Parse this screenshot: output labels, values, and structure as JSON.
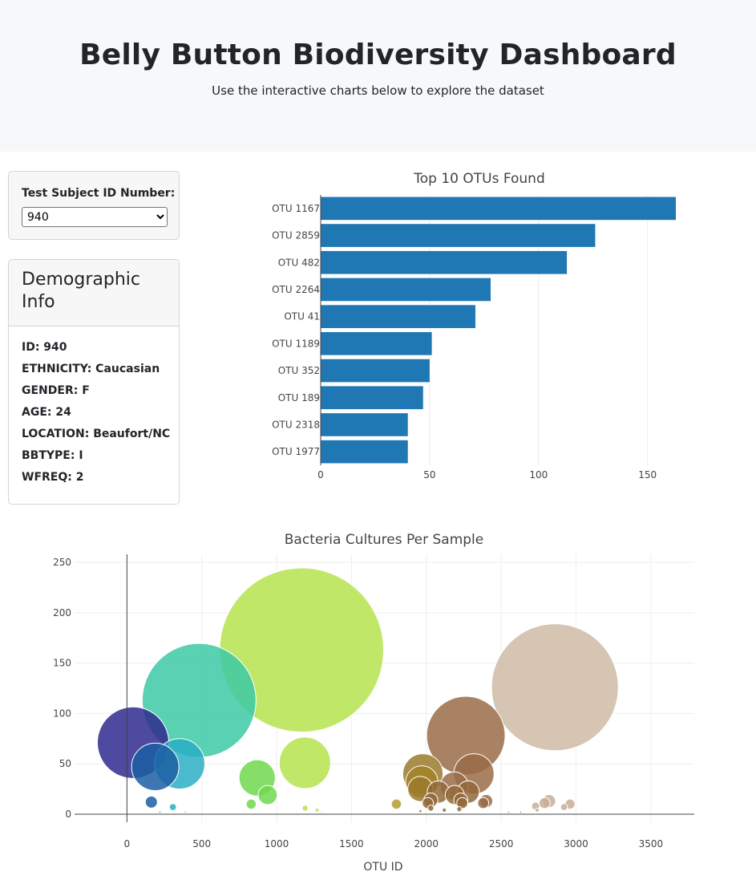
{
  "header": {
    "title": "Belly Button Biodiversity Dashboard",
    "subtitle": "Use the interactive charts below to explore the dataset"
  },
  "selector": {
    "label": "Test Subject ID Number:",
    "selected": "940"
  },
  "demographics": {
    "title": "Demographic Info",
    "rows": [
      "ID: 940",
      "ETHNICITY: Caucasian",
      "GENDER: F",
      "AGE: 24",
      "LOCATION: Beaufort/NC",
      "BBTYPE: I",
      "WFREQ: 2"
    ]
  },
  "chart_data": [
    {
      "type": "bar",
      "orientation": "horizontal",
      "title": "Top 10 OTUs Found",
      "categories": [
        "OTU 1167",
        "OTU 2859",
        "OTU 482",
        "OTU 2264",
        "OTU 41",
        "OTU 1189",
        "OTU 352",
        "OTU 189",
        "OTU 2318",
        "OTU 1977"
      ],
      "values": [
        163,
        126,
        113,
        78,
        71,
        51,
        50,
        47,
        40,
        40
      ],
      "xlim": [
        0,
        163
      ],
      "xticks": [
        0,
        50,
        100,
        150
      ],
      "color": "#1f77b4",
      "grid": true
    },
    {
      "type": "scatter",
      "subtype": "bubble",
      "title": "Bacteria Cultures Per Sample",
      "xlabel": "OTU ID",
      "ylabel": "",
      "xlim": [
        -350,
        3790
      ],
      "ylim": [
        -8,
        258
      ],
      "xticks": [
        0,
        500,
        1000,
        1500,
        2000,
        2500,
        3000,
        3500
      ],
      "yticks": [
        0,
        50,
        100,
        150,
        200,
        250
      ],
      "grid": true,
      "colorscale": "Earth",
      "points": [
        {
          "x": 41,
          "y": 71,
          "color": "#2e2a8e"
        },
        {
          "x": 189,
          "y": 47,
          "color": "#1c5ea3"
        },
        {
          "x": 352,
          "y": 50,
          "color": "#2aafc4"
        },
        {
          "x": 482,
          "y": 113,
          "color": "#3cc9a4"
        },
        {
          "x": 1167,
          "y": 163,
          "color": "#b6e34f"
        },
        {
          "x": 2859,
          "y": 126,
          "color": "#cfbba6"
        },
        {
          "x": 2264,
          "y": 78,
          "color": "#9a6c48"
        },
        {
          "x": 1189,
          "y": 51,
          "color": "#b6e34f"
        },
        {
          "x": 870,
          "y": 36,
          "color": "#6fd84e"
        },
        {
          "x": 940,
          "y": 19,
          "color": "#6fd84e"
        },
        {
          "x": 163,
          "y": 12,
          "color": "#1c5ea3"
        },
        {
          "x": 307,
          "y": 7,
          "color": "#2aafc4"
        },
        {
          "x": 830,
          "y": 10,
          "color": "#6fd84e"
        },
        {
          "x": 1977,
          "y": 40,
          "color": "#9b7a2c"
        },
        {
          "x": 1970,
          "y": 32,
          "color": "#a38128"
        },
        {
          "x": 1960,
          "y": 25,
          "color": "#9b7a2c"
        },
        {
          "x": 2318,
          "y": 40,
          "color": "#9a6c48"
        },
        {
          "x": 2186,
          "y": 28,
          "color": "#9a6c48"
        },
        {
          "x": 2080,
          "y": 22,
          "color": "#93683a"
        },
        {
          "x": 2190,
          "y": 19,
          "color": "#93683a"
        },
        {
          "x": 2280,
          "y": 22,
          "color": "#93683a"
        },
        {
          "x": 2030,
          "y": 14,
          "color": "#93683a"
        },
        {
          "x": 2010,
          "y": 11,
          "color": "#93683a"
        },
        {
          "x": 2230,
          "y": 14,
          "color": "#93683a"
        },
        {
          "x": 2240,
          "y": 11,
          "color": "#93683a"
        },
        {
          "x": 2400,
          "y": 13,
          "color": "#9a6c48"
        },
        {
          "x": 2380,
          "y": 11,
          "color": "#9a6c48"
        },
        {
          "x": 1800,
          "y": 10,
          "color": "#b59a30"
        },
        {
          "x": 2820,
          "y": 13,
          "color": "#c7ae95"
        },
        {
          "x": 2790,
          "y": 11,
          "color": "#c7ae95"
        },
        {
          "x": 2960,
          "y": 10,
          "color": "#c7ae95"
        },
        {
          "x": 2730,
          "y": 8,
          "color": "#c7ae95"
        },
        {
          "x": 2920,
          "y": 7,
          "color": "#c7ae95"
        },
        {
          "x": 1190,
          "y": 6,
          "color": "#b6e34f"
        },
        {
          "x": 1270,
          "y": 4,
          "color": "#b6e34f"
        },
        {
          "x": 2030,
          "y": 6,
          "color": "#93683a"
        },
        {
          "x": 1960,
          "y": 3,
          "color": "#9b7a2c"
        },
        {
          "x": 2740,
          "y": 4,
          "color": "#c7ae95"
        },
        {
          "x": 2120,
          "y": 4,
          "color": "#93683a"
        },
        {
          "x": 2220,
          "y": 5,
          "color": "#93683a"
        },
        {
          "x": 220,
          "y": 2,
          "color": "#1c5ea3"
        },
        {
          "x": 390,
          "y": 2,
          "color": "#2aafc4"
        },
        {
          "x": 1300,
          "y": 2,
          "color": "#b6e34f"
        },
        {
          "x": 2550,
          "y": 2,
          "color": "#9a6c48"
        },
        {
          "x": 2630,
          "y": 2,
          "color": "#9a6c48"
        }
      ]
    }
  ]
}
